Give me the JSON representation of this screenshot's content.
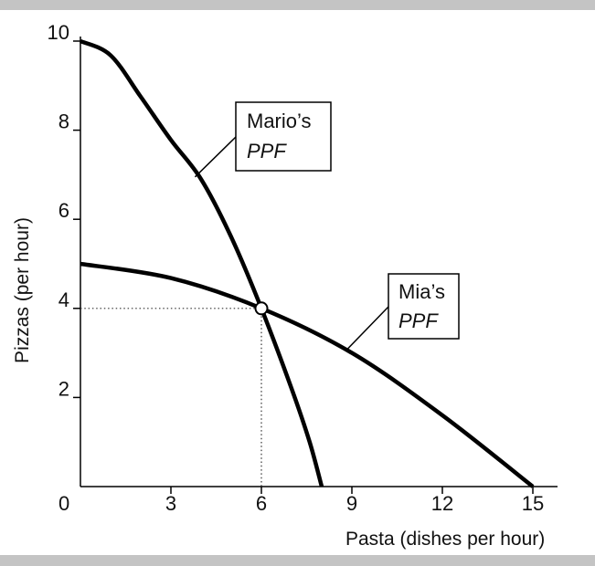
{
  "chart_data": {
    "type": "line",
    "xlabel": "Pasta (dishes per hour)",
    "ylabel": "Pizzas (per hour)",
    "xlim": [
      0,
      16
    ],
    "ylim": [
      0,
      10
    ],
    "x_ticks": [
      3,
      6,
      9,
      12,
      15
    ],
    "y_ticks": [
      2,
      4,
      6,
      8,
      10
    ],
    "origin_label": "0",
    "series": [
      {
        "name": "Mario's PPF",
        "label_lines": [
          "Mario’s",
          "PPF"
        ],
        "x": [
          0,
          1,
          2,
          3,
          4,
          5,
          6,
          7,
          7.6,
          8
        ],
        "y": [
          10,
          9.68,
          8.75,
          7.78,
          6.9,
          5.6,
          4,
          2.2,
          1.0,
          0
        ]
      },
      {
        "name": "Mia's PPF",
        "label_lines": [
          "Mia’s",
          "PPF"
        ],
        "x": [
          0,
          3,
          6,
          9,
          12,
          15
        ],
        "y": [
          5.0,
          4.68,
          4.0,
          3.0,
          1.6,
          0
        ]
      }
    ],
    "intersection": {
      "x": 6,
      "y": 4
    },
    "colors": {
      "curve": "#000000",
      "frame": "#c4c4c4",
      "guide": "#333333"
    },
    "grid": false
  }
}
